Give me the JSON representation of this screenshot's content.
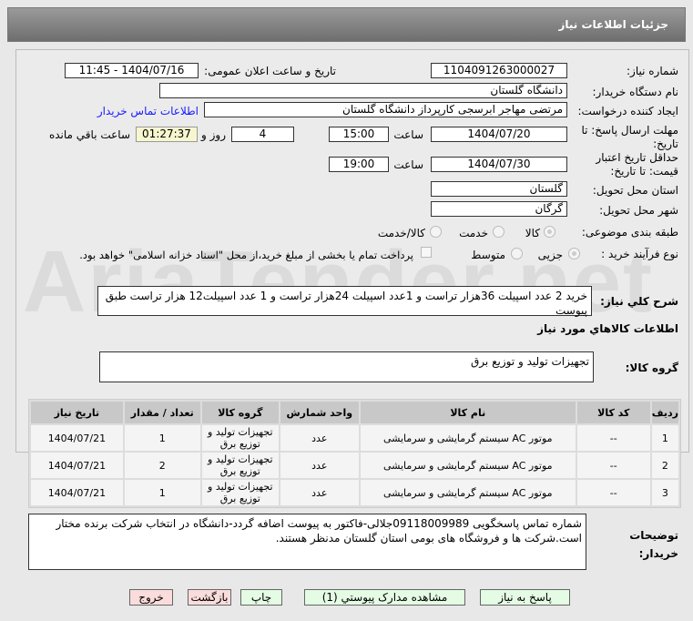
{
  "header": {
    "title": "جزئيات اطلاعات نیاز"
  },
  "watermark": "AriaTender.net",
  "form": {
    "need_number_label": "شماره نیاز:",
    "need_number": "1104091263000027",
    "announce_label": "تاریخ و ساعت اعلان عمومی:",
    "announce_value": "1404/07/16 - 11:45",
    "buyer_org_label": "نام دستگاه خریدار:",
    "buyer_org": "دانشگاه گلستان",
    "creator_label": "ایجاد کننده درخواست:",
    "creator": "مرتضی مهاجر ابرسجی کارپرداز دانشگاه گلستان",
    "contact_link": "اطلاعات تماس خریدار",
    "deadline_label": "مهلت ارسال پاسخ: تا تاریخ:",
    "deadline_date": "1404/07/20",
    "time_label": "ساعت",
    "deadline_time": "15:00",
    "days": "4",
    "days_label": "روز و",
    "remaining": "01:27:37",
    "remaining_label": "ساعت باقي مانده",
    "validity_label": "حداقل تاریخ اعتبار قیمت: تا تاریخ:",
    "validity_date": "1404/07/30",
    "validity_time": "19:00",
    "province_label": "استان محل تحویل:",
    "province": "گلستان",
    "city_label": "شهر محل تحویل:",
    "city": "گرگان",
    "category_label": "طبقه بندی موضوعی:",
    "category_options": [
      "کالا",
      "خدمت",
      "کالا/خدمت"
    ],
    "category_selected": "کالا",
    "process_label": "نوع فرآیند خرید :",
    "process_options": [
      "جزیی",
      "متوسط"
    ],
    "process_selected": "جزیی",
    "payment_note": "پرداخت تمام یا بخشی از مبلغ خرید،از محل \"اسناد خزانه اسلامی\" خواهد بود.",
    "description_label": "شرح کلي نياز:",
    "description": "خرید 2 عدد اسپیلت 36هزار تراست و 1عدد اسپیلت 24هزار تراست و 1 عدد اسپیلت12 هزار تراست طبق پیوست",
    "goods_info_title": "اطلاعات کالاهاي مورد نياز",
    "group_label": "گروه کالا:",
    "group": "تجهیزات تولید و توزیع برق"
  },
  "table": {
    "headers": [
      "ردیف",
      "کد کالا",
      "نام کالا",
      "واحد شمارش",
      "گروه کالا",
      "تعداد / مقدار",
      "تاریخ نیاز"
    ],
    "rows": [
      [
        "1",
        "--",
        "موتور AC سیستم گرمایشی و سرمایشی",
        "عدد",
        "تجهیزات تولید و توزیع برق",
        "1",
        "1404/07/21"
      ],
      [
        "2",
        "--",
        "موتور AC سیستم گرمایشی و سرمایشی",
        "عدد",
        "تجهیزات تولید و توزیع برق",
        "2",
        "1404/07/21"
      ],
      [
        "3",
        "--",
        "موتور AC سیستم گرمایشی و سرمایشی",
        "عدد",
        "تجهیزات تولید و توزیع برق",
        "1",
        "1404/07/21"
      ]
    ]
  },
  "notes": {
    "label": "توضیحات خریدار:",
    "text": "شماره تماس پاسخگویی 09118009989جلالی-فاکتور به پیوست اضافه گردد-دانشگاه در انتخاب شرکت برنده مختار است.شرکت ها و فروشگاه های بومی استان گلستان مدنظر هستند."
  },
  "buttons": {
    "reply": "پاسخ به نیاز",
    "attachments": "مشاهده مدارک پیوستي (1)",
    "print": "چاپ",
    "back": "بازگشت",
    "exit": "خروج"
  }
}
